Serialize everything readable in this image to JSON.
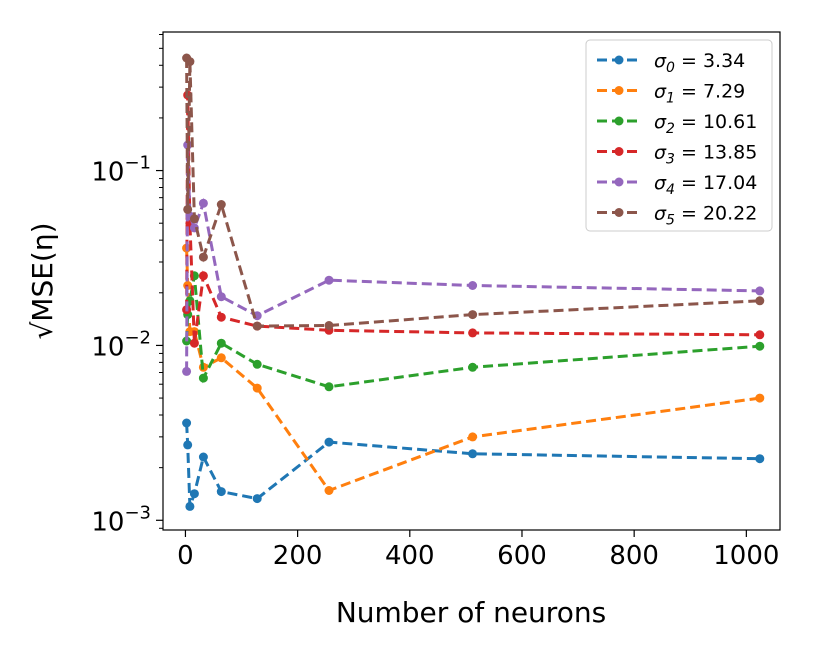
{
  "chart_data": {
    "type": "line",
    "xlabel": "Number of neurons",
    "ylabel": "√MSE(η)",
    "yscale": "log",
    "xlim": [
      -40,
      1060
    ],
    "ylim": [
      0.00088,
      0.62
    ],
    "xticks": [
      0,
      200,
      400,
      600,
      800,
      1000
    ],
    "xtick_labels": [
      "0",
      "200",
      "400",
      "600",
      "800",
      "1000"
    ],
    "yticks": [
      0.001,
      0.01,
      0.1
    ],
    "ytick_labels": [
      {
        "base": "10",
        "exp": "−3"
      },
      {
        "base": "10",
        "exp": "−2"
      },
      {
        "base": "10",
        "exp": "−1"
      }
    ],
    "legend_position": "top-right",
    "x": [
      2,
      4,
      8,
      16,
      32,
      64,
      128,
      256,
      512,
      1024
    ],
    "series": [
      {
        "name": "σ0 = 3.34",
        "sym": "σ",
        "sub": "0",
        "val": "= 3.34",
        "color": "#1f77b4",
        "values": [
          0.0036,
          0.0027,
          0.0012,
          0.00142,
          0.0023,
          0.00146,
          0.00133,
          0.0028,
          0.0024,
          0.00225
        ]
      },
      {
        "name": "σ1 = 7.29",
        "sym": "σ",
        "sub": "1",
        "val": "= 7.29",
        "color": "#ff7f0e",
        "values": [
          0.036,
          0.022,
          0.012,
          0.012,
          0.0075,
          0.0085,
          0.0057,
          0.00148,
          0.003,
          0.005
        ]
      },
      {
        "name": "σ2 = 10.61",
        "sym": "σ",
        "sub": "2",
        "val": "= 10.61",
        "color": "#2ca02c",
        "values": [
          0.0106,
          0.015,
          0.018,
          0.025,
          0.0065,
          0.0103,
          0.0078,
          0.0058,
          0.0075,
          0.0099
        ]
      },
      {
        "name": "σ3 = 13.85",
        "sym": "σ",
        "sub": "3",
        "val": "= 13.85",
        "color": "#d62728",
        "values": [
          0.016,
          0.27,
          0.05,
          0.0103,
          0.025,
          0.0145,
          0.0129,
          0.0122,
          0.0118,
          0.0115
        ]
      },
      {
        "name": "σ4 = 17.04",
        "sym": "σ",
        "sub": "4",
        "val": "= 17.04",
        "color": "#9467bd",
        "values": [
          0.0071,
          0.14,
          0.055,
          0.047,
          0.065,
          0.019,
          0.0148,
          0.0236,
          0.022,
          0.0205
        ]
      },
      {
        "name": "σ5 = 20.22",
        "sym": "σ",
        "sub": "5",
        "val": "= 20.22",
        "color": "#8c564b",
        "values": [
          0.44,
          0.06,
          0.42,
          0.053,
          0.032,
          0.064,
          0.0129,
          0.013,
          0.015,
          0.018
        ]
      }
    ]
  }
}
